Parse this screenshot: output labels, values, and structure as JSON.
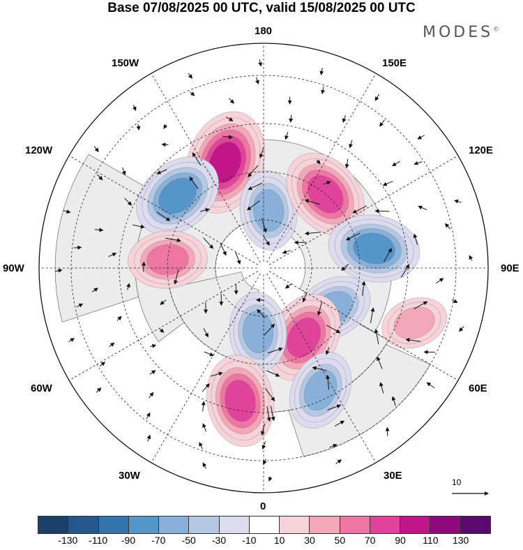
{
  "header": {
    "title": "Base 07/08/2025 00 UTC, valid 15/08/2025 00 UTC",
    "brand": "MODES",
    "brand_mark": "©"
  },
  "map": {
    "projection": "north-polar-stereographic",
    "longitude_labels": {
      "top": "180",
      "top_left": "150W",
      "top_right": "150E",
      "upper_left": "120W",
      "upper_right": "120E",
      "left": "90W",
      "right": "90E",
      "lower_left": "60W",
      "lower_right": "60E",
      "bottom_left": "30W",
      "bottom_right": "30E",
      "bottom": "0"
    },
    "anomaly_centers": [
      {
        "sign": "positive",
        "level": 90,
        "lon": -160,
        "lat": 55
      },
      {
        "sign": "negative",
        "level": -70,
        "lon": -130,
        "lat": 55
      },
      {
        "sign": "negative",
        "level": -50,
        "lon": 175,
        "lat": 72
      },
      {
        "sign": "positive",
        "level": 70,
        "lon": 140,
        "lat": 60
      },
      {
        "sign": "negative",
        "level": -70,
        "lon": 100,
        "lat": 55
      },
      {
        "sign": "positive",
        "level": 50,
        "lon": -95,
        "lat": 60
      },
      {
        "sign": "negative",
        "level": -50,
        "lon": 60,
        "lat": 65
      },
      {
        "sign": "positive",
        "level": 70,
        "lon": 30,
        "lat": 65
      },
      {
        "sign": "negative",
        "level": -50,
        "lon": -5,
        "lat": 70
      },
      {
        "sign": "negative",
        "level": -50,
        "lon": 25,
        "lat": 48
      },
      {
        "sign": "positive",
        "level": 70,
        "lon": -10,
        "lat": 48
      },
      {
        "sign": "positive",
        "level": 30,
        "lon": 70,
        "lat": 40
      }
    ],
    "wind_reference": {
      "value": "10"
    }
  },
  "legend": {
    "colors": [
      "#1b3f66",
      "#24578a",
      "#3474ad",
      "#5396c7",
      "#88b0d8",
      "#b4c8e4",
      "#dcdcee",
      "#ffffff",
      "#f6d3d9",
      "#f2a8b8",
      "#ee76a2",
      "#e0449a",
      "#c0168a",
      "#8e0a7a",
      "#5a0a6e"
    ],
    "labels": [
      "-130",
      "-110",
      "-90",
      "-70",
      "-50",
      "-30",
      "-10",
      "10",
      "30",
      "50",
      "70",
      "90",
      "110",
      "130"
    ]
  }
}
